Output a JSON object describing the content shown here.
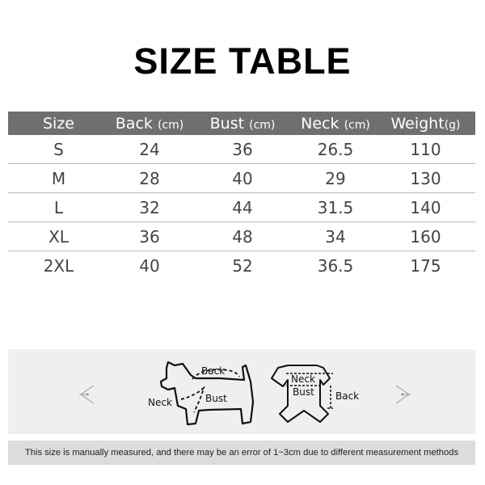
{
  "title": "SIZE TABLE",
  "table": {
    "headers": [
      {
        "label": "Size",
        "unit": ""
      },
      {
        "label": "Back",
        "unit": "(cm)"
      },
      {
        "label": "Bust",
        "unit": "(cm)"
      },
      {
        "label": "Neck",
        "unit": "(cm)"
      },
      {
        "label": "Weight",
        "unit": "(g)"
      }
    ],
    "rows": [
      [
        "S",
        "24",
        "36",
        "26.5",
        "110"
      ],
      [
        "M",
        "28",
        "40",
        "29",
        "130"
      ],
      [
        "L",
        "32",
        "44",
        "31.5",
        "140"
      ],
      [
        "XL",
        "36",
        "48",
        "34",
        "160"
      ],
      [
        "2XL",
        "40",
        "52",
        "36.5",
        "175"
      ]
    ]
  },
  "diagram": {
    "dog_labels": {
      "back": "Back",
      "neck": "Neck",
      "bust": "Bust"
    },
    "shirt_labels": {
      "neck": "Neck",
      "bust": "Bust",
      "back": "Back"
    },
    "left_icon": "arrow-left-icon",
    "right_icon": "arrow-right-icon"
  },
  "note": "This size is manually measured, and there may be an error of 1~3cm due to different measurement methods",
  "colors": {
    "header_bg": "#6f6f6f",
    "panel_bg": "#efefef",
    "note_bg": "#dcdcdc"
  }
}
